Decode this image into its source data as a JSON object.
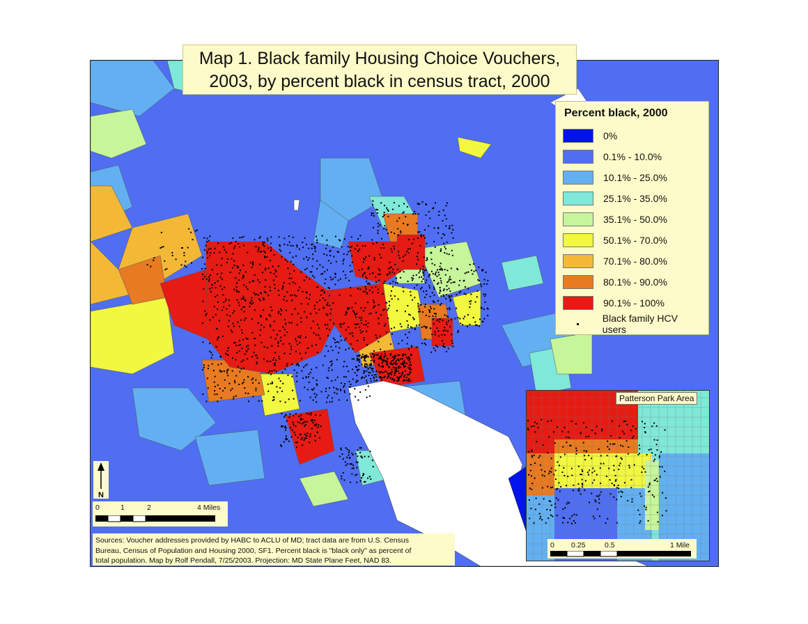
{
  "title": {
    "line1": "Map 1. Black family Housing Choice Vouchers,",
    "line2": "2003, by percent black in census tract, 2000"
  },
  "legend": {
    "title": "Percent black, 2000",
    "items": [
      {
        "label": "0%",
        "color": "#0013ea"
      },
      {
        "label": "0.1% - 10.0%",
        "color": "#4f6ef2"
      },
      {
        "label": "10.1% - 25.0%",
        "color": "#62b0f2"
      },
      {
        "label": "25.1% - 35.0%",
        "color": "#7fe8d8"
      },
      {
        "label": "35.1% - 50.0%",
        "color": "#c7f59a"
      },
      {
        "label": "50.1% - 70.0%",
        "color": "#f2f740"
      },
      {
        "label": "70.1% - 80.0%",
        "color": "#f3b936"
      },
      {
        "label": "80.1% - 90.0%",
        "color": "#e87a22"
      },
      {
        "label": "90.1% - 100%",
        "color": "#e51b14"
      }
    ],
    "points_label": "Black family HCV users"
  },
  "scale": {
    "ticks": [
      "0",
      "1",
      "2",
      "4 Miles"
    ]
  },
  "north": {
    "label": "N"
  },
  "inset": {
    "label": "Patterson Park Area",
    "scale_ticks": [
      "0",
      "0.25",
      "0.5",
      "1 Mile"
    ]
  },
  "sources": {
    "line1": "Sources: Voucher addresses provided by HABC to ACLU of MD; tract data are from U.S. Census",
    "line2": "Bureau, Census of Population and Housing 2000, SF1. Percent black is \"black only\" as percent of",
    "line3": "total population. Map by Rolf Pendall, 7/25/2003. Projection: MD State Plane Feet, NAD 83."
  },
  "colors": {
    "water": "#ffffff",
    "background": "#4f6ef2",
    "label_bg": "#fdfbc9"
  }
}
